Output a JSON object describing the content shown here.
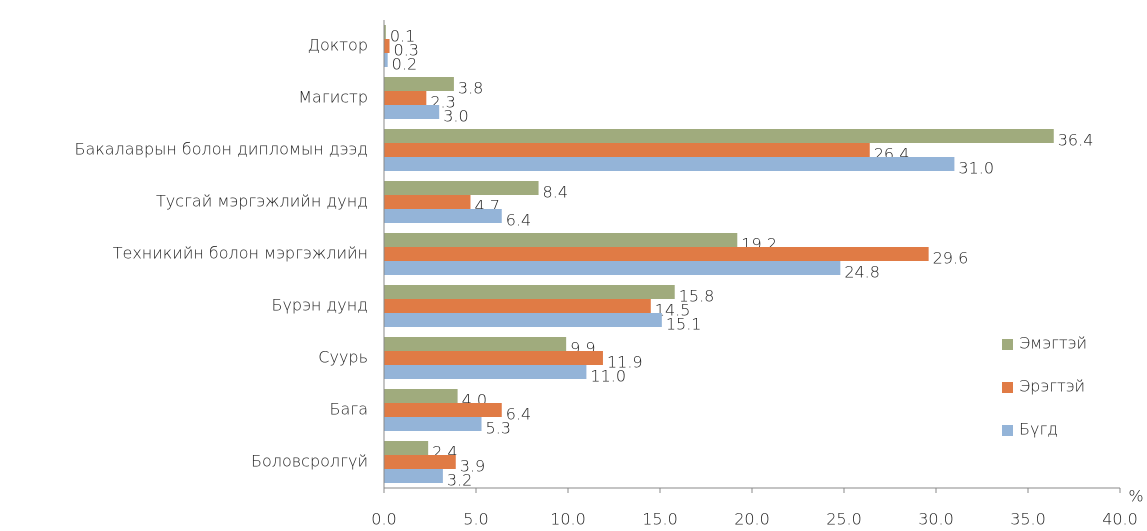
{
  "chart_data": {
    "type": "barh",
    "xlabel": "%",
    "categories": [
      "Доктор",
      "Магистр",
      "Бакалаврын болон дипломын дээд",
      "Тусгай мэргэжлийн дунд",
      "Техникийн болон мэргэжлийн",
      "Бүрэн дунд",
      "Суурь",
      "Бага",
      "Боловсролгүй"
    ],
    "series": [
      {
        "name": "Эмэгтэй",
        "color": "#a0ab7d",
        "values": [
          0.1,
          3.8,
          36.4,
          8.4,
          19.2,
          15.8,
          9.9,
          4.0,
          2.4
        ],
        "value_labels": [
          "0.1",
          "3.8",
          "36.4",
          "8.4",
          "19.2",
          "15.8",
          "9.9",
          "4.0",
          "2.4"
        ]
      },
      {
        "name": "Эрэгтэй",
        "color": "#e07b45",
        "values": [
          0.3,
          2.3,
          26.4,
          4.7,
          29.6,
          14.5,
          11.9,
          6.4,
          3.9
        ],
        "value_labels": [
          "0.3",
          "2.3",
          "26.4",
          "4.7",
          "29.6",
          "14.5",
          "11.9",
          "6.4",
          "3.9"
        ]
      },
      {
        "name": "Бүгд",
        "color": "#94b4d8",
        "values": [
          0.2,
          3.0,
          31.0,
          6.4,
          24.8,
          15.1,
          11.0,
          5.3,
          3.2
        ],
        "value_labels": [
          "0.2",
          "3.0",
          "31.0",
          "6.4",
          "24.8",
          "15.1",
          "11.0",
          "5.3",
          "3.2"
        ]
      }
    ],
    "xlim": [
      0,
      40
    ],
    "xticks": [
      {
        "value": 0,
        "label": "0.0"
      },
      {
        "value": 5,
        "label": "5.0"
      },
      {
        "value": 10,
        "label": "10.0"
      },
      {
        "value": 15,
        "label": "15.0"
      },
      {
        "value": 20,
        "label": "20.0"
      },
      {
        "value": 25,
        "label": "25.0"
      },
      {
        "value": 30,
        "label": "30.0"
      },
      {
        "value": 35,
        "label": "35.0"
      },
      {
        "value": 40,
        "label": "40.0"
      }
    ],
    "legend": "right"
  }
}
